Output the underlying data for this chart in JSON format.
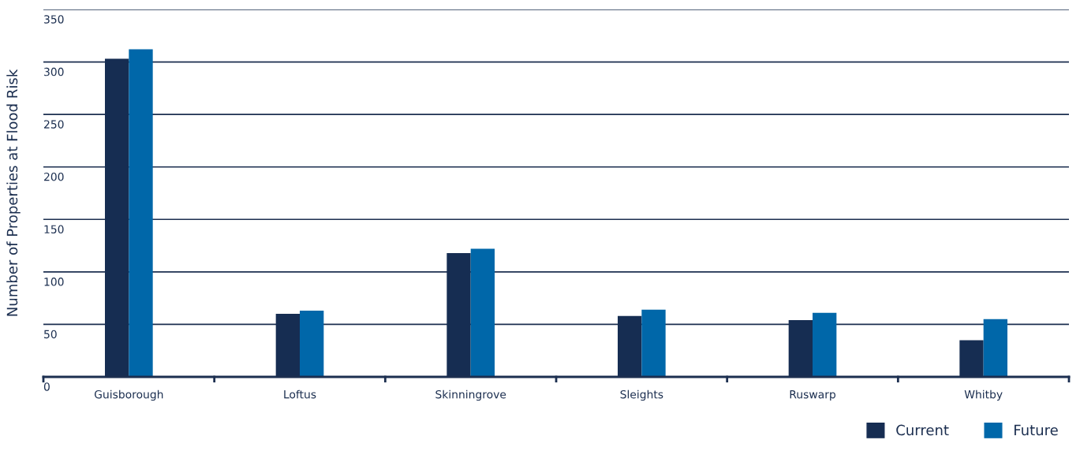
{
  "chart_data": {
    "type": "bar",
    "ylabel": "Number of Properties at Flood Risk",
    "categories": [
      "Guisborough",
      "Loftus",
      "Skinningrove",
      "Sleights",
      "Ruswarp",
      "Whitby"
    ],
    "series": [
      {
        "name": "Current",
        "color": "#162d52",
        "values": [
          303,
          60,
          118,
          58,
          54,
          35
        ]
      },
      {
        "name": "Future",
        "color": "#0067a9",
        "values": [
          312,
          63,
          122,
          64,
          61,
          55
        ]
      }
    ],
    "ylim": [
      0,
      350
    ],
    "yticks": [
      0,
      50,
      100,
      150,
      200,
      250,
      300,
      350
    ],
    "grid": "y",
    "legend": "bottom right"
  }
}
